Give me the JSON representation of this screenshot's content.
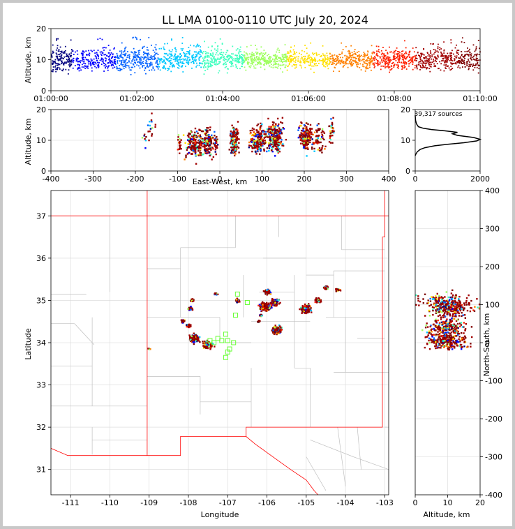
{
  "chart_data": [
    {
      "type": "scatter",
      "panel": "time-altitude",
      "title": "LL LMA 0100-0110 UTC July 20, 2024",
      "xlabel": "",
      "ylabel": "Altitude, km",
      "xlim": [
        "01:00:00",
        "01:10:00"
      ],
      "ylim": [
        0,
        20
      ],
      "x_ticks": [
        "01:00:00",
        "01:02:00",
        "01:04:00",
        "01:06:00",
        "01:08:00",
        "01:10:00"
      ],
      "y_ticks": [
        0,
        10,
        20
      ],
      "color_by": "time",
      "colormap": [
        "#0000ff",
        "#00c8ff",
        "#7fff7f",
        "#ffd700",
        "#ff4000",
        "#800000"
      ],
      "point_density": {
        "x": [
          "01:00",
          "01:01",
          "01:02",
          "01:03",
          "01:04",
          "01:05",
          "01:06",
          "01:07",
          "01:08",
          "01:09",
          "01:10"
        ],
        "core_altitude_km": [
          10,
          10,
          10,
          10.5,
          10,
          10,
          10,
          10,
          10,
          10,
          10
        ],
        "spread_km": [
          4,
          4,
          4,
          4,
          3,
          3,
          3,
          3.5,
          3.5,
          4,
          3
        ]
      }
    },
    {
      "type": "scatter",
      "panel": "east-west-altitude",
      "xlabel": "East-West, km",
      "ylabel": "Altitude, km",
      "xlim": [
        -400,
        400
      ],
      "ylim": [
        0,
        20
      ],
      "x_ticks": [
        -400,
        -300,
        -200,
        -100,
        0,
        100,
        200,
        300,
        400
      ],
      "y_ticks": [
        0,
        10,
        20
      ],
      "clusters_km": [
        {
          "x": -175,
          "alt": 11,
          "width": 10,
          "count": 10
        },
        {
          "x": -160,
          "alt": 14,
          "width": 8,
          "count": 12
        },
        {
          "x": -95,
          "alt": 9,
          "width": 6,
          "count": 20
        },
        {
          "x": -60,
          "alt": 9,
          "width": 18,
          "count": 160
        },
        {
          "x": -30,
          "alt": 9,
          "width": 18,
          "count": 140
        },
        {
          "x": -10,
          "alt": 9,
          "width": 6,
          "count": 30
        },
        {
          "x": 35,
          "alt": 10,
          "width": 10,
          "count": 140
        },
        {
          "x": 90,
          "alt": 10,
          "width": 18,
          "count": 180
        },
        {
          "x": 130,
          "alt": 11,
          "width": 20,
          "count": 260
        },
        {
          "x": 205,
          "alt": 11,
          "width": 16,
          "count": 200
        },
        {
          "x": 235,
          "alt": 11,
          "width": 14,
          "count": 60
        },
        {
          "x": 265,
          "alt": 13,
          "width": 6,
          "count": 30
        }
      ]
    },
    {
      "type": "line",
      "panel": "altitude-histogram",
      "annotation": "39,317 sources",
      "xlim": [
        0,
        2000
      ],
      "ylim": [
        0,
        20
      ],
      "x_ticks": [
        0,
        2000
      ],
      "y_ticks": [
        0,
        10,
        20
      ],
      "series": [
        {
          "x": [
            0,
            20,
            60,
            150,
            300,
            600,
            1000,
            1500,
            1900,
            2000,
            1800,
            1300,
            1150,
            1300,
            900,
            500,
            250,
            100,
            40,
            10,
            0
          ],
          "y": [
            5,
            5.5,
            6.2,
            7,
            7.6,
            8.2,
            8.7,
            9.2,
            9.8,
            10.3,
            10.9,
            11.6,
            12.1,
            12.6,
            13.1,
            13.5,
            13.9,
            14.4,
            15.3,
            16.5,
            18
          ]
        }
      ]
    },
    {
      "type": "scatter",
      "panel": "plan-view-map",
      "xlabel": "Longitude",
      "ylabel": "Latitude",
      "xlim": [
        -111.5,
        -102.9
      ],
      "ylim": [
        30.4,
        37.6
      ],
      "x_ticks": [
        -111,
        -110,
        -109,
        -108,
        -107,
        -106,
        -105,
        -104,
        -103
      ],
      "y_ticks": [
        31,
        32,
        33,
        34,
        35,
        36,
        37
      ],
      "clusters_deg": [
        {
          "lon": -109.0,
          "lat": 33.85,
          "width": 0.04,
          "count": 6
        },
        {
          "lon": -108.15,
          "lat": 34.5,
          "width": 0.06,
          "count": 20
        },
        {
          "lon": -108.0,
          "lat": 34.4,
          "width": 0.06,
          "count": 25
        },
        {
          "lon": -107.95,
          "lat": 34.8,
          "width": 0.05,
          "count": 25
        },
        {
          "lon": -107.9,
          "lat": 35.0,
          "width": 0.05,
          "count": 20
        },
        {
          "lon": -107.85,
          "lat": 34.1,
          "width": 0.12,
          "count": 120
        },
        {
          "lon": -107.5,
          "lat": 33.95,
          "width": 0.12,
          "count": 140
        },
        {
          "lon": -107.3,
          "lat": 35.15,
          "width": 0.04,
          "count": 12
        },
        {
          "lon": -106.75,
          "lat": 35.0,
          "width": 0.05,
          "count": 40
        },
        {
          "lon": -106.0,
          "lat": 35.2,
          "width": 0.08,
          "count": 70
        },
        {
          "lon": -106.05,
          "lat": 34.85,
          "width": 0.12,
          "count": 130
        },
        {
          "lon": -105.8,
          "lat": 34.95,
          "width": 0.1,
          "count": 90
        },
        {
          "lon": -105.75,
          "lat": 34.3,
          "width": 0.12,
          "count": 160
        },
        {
          "lon": -106.2,
          "lat": 34.5,
          "width": 0.04,
          "count": 15
        },
        {
          "lon": -106.15,
          "lat": 34.65,
          "width": 0.04,
          "count": 15
        },
        {
          "lon": -105.0,
          "lat": 34.8,
          "width": 0.12,
          "count": 130
        },
        {
          "lon": -104.7,
          "lat": 35.0,
          "width": 0.08,
          "count": 40
        },
        {
          "lon": -104.5,
          "lat": 35.3,
          "width": 0.06,
          "count": 40
        },
        {
          "lon": -104.2,
          "lat": 35.25,
          "width": 0.05,
          "count": 25
        }
      ],
      "stations": [
        {
          "lon": -106.75,
          "lat": 35.15
        },
        {
          "lon": -106.5,
          "lat": 34.95
        },
        {
          "lon": -106.8,
          "lat": 34.65
        },
        {
          "lon": -107.05,
          "lat": 34.2
        },
        {
          "lon": -107.25,
          "lat": 34.1
        },
        {
          "lon": -107.45,
          "lat": 34.05
        },
        {
          "lon": -107.35,
          "lat": 34.0
        },
        {
          "lon": -107.15,
          "lat": 34.05
        },
        {
          "lon": -107.0,
          "lat": 34.05
        },
        {
          "lon": -106.85,
          "lat": 34.0
        },
        {
          "lon": -106.95,
          "lat": 33.85
        },
        {
          "lon": -107.0,
          "lat": 33.78
        },
        {
          "lon": -107.05,
          "lat": 33.65
        }
      ]
    },
    {
      "type": "scatter",
      "panel": "altitude-north-south",
      "xlabel": "Altitude, km",
      "ylabel": "North-South, km",
      "xlim": [
        0,
        20
      ],
      "ylim": [
        -400,
        400
      ],
      "x_ticks": [
        0,
        10,
        20
      ],
      "y_ticks": [
        -400,
        -300,
        -200,
        -100,
        0,
        100,
        200,
        300,
        400
      ],
      "clusters_km": [
        {
          "alt": 10,
          "ns": 95,
          "height": 30,
          "count": 300
        },
        {
          "alt": 10,
          "ns": 40,
          "height": 20,
          "count": 180
        },
        {
          "alt": 10,
          "ns": 5,
          "height": 22,
          "count": 260
        },
        {
          "alt": 3,
          "ns": 110,
          "height": 20,
          "count": 20
        },
        {
          "alt": 17,
          "ns": 100,
          "height": 25,
          "count": 30
        }
      ]
    }
  ],
  "colors": {
    "border": "#ff0000",
    "county": "#c0c0c0",
    "station": "#66ff33",
    "histogram": "#000000"
  }
}
